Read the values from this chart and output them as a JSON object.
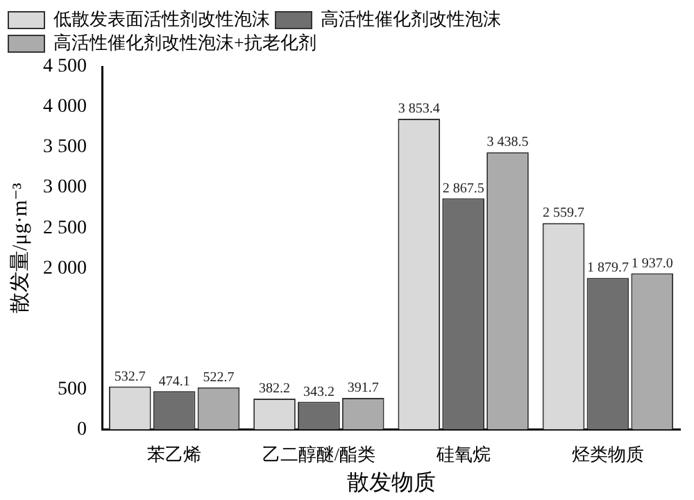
{
  "chart_data": {
    "type": "bar",
    "xlabel": "散发物质",
    "ylabel": "散发量/μg·m⁻³",
    "categories": [
      "苯乙烯",
      "乙二醇醚/酯类",
      "硅氧烷",
      "烃类物质"
    ],
    "series": [
      {
        "name": "低散发表面活性剂改性泡沫",
        "color": "#d9d9d9",
        "values": [
          532.7,
          382.2,
          3853.4,
          2559.7
        ],
        "value_labels": [
          "532.7",
          "382.2",
          "3 853.4",
          "2 559.7"
        ]
      },
      {
        "name": "高活性催化剂改性泡沫",
        "color": "#6f6f6f",
        "values": [
          474.1,
          343.2,
          2867.5,
          1879.7
        ],
        "value_labels": [
          "474.1",
          "343.2",
          "2 867.5",
          "1 879.7"
        ]
      },
      {
        "name": "高活性催化剂改性泡沫+抗老化剂",
        "color": "#ababab",
        "values": [
          522.7,
          391.7,
          3438.5,
          1937.0
        ],
        "value_labels": [
          "522.7",
          "391.7",
          "3 438.5",
          "1 937.0"
        ]
      }
    ],
    "ylim": [
      0,
      4500
    ],
    "yticks": [
      {
        "value": 0,
        "label": "0"
      },
      {
        "value": 500,
        "label": "500"
      },
      {
        "value": 2000,
        "label": "2 000"
      },
      {
        "value": 2500,
        "label": "2 500"
      },
      {
        "value": 3000,
        "label": "3 000"
      },
      {
        "value": 3500,
        "label": "3 500"
      },
      {
        "value": 4000,
        "label": "4 000"
      },
      {
        "value": 4500,
        "label": "4 500"
      }
    ],
    "grid": false,
    "legend": "top left"
  }
}
